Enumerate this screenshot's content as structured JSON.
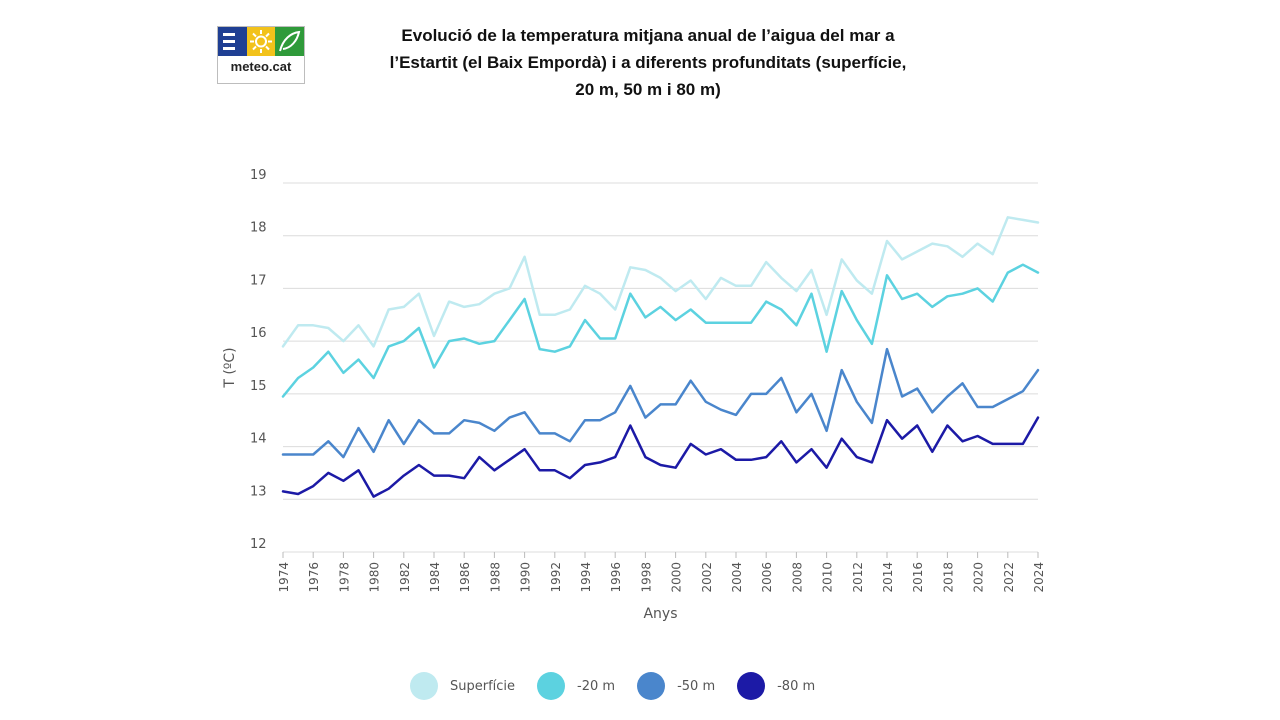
{
  "logo": {
    "text": "meteo.cat",
    "icons": [
      "menu-bars-icon",
      "sun-icon",
      "leaf-icon"
    ]
  },
  "chart_data": {
    "type": "line",
    "title": "Evolució de la temperatura mitjana anual de l’aigua del mar a l’Estartit (el Baix Empordà) i a diferents profunditats (superfície, 20 m, 50 m i 80 m)",
    "title_lines": [
      "Evolució de la temperatura mitjana anual de l’aigua del mar a",
      "l’Estartit (el Baix Empordà) i a diferents profunditats (superfície,",
      "20 m, 50 m i 80 m)"
    ],
    "xlabel": "Anys",
    "ylabel": "T (ºC)",
    "ylim": [
      12,
      19
    ],
    "yticks": [
      12,
      13,
      14,
      15,
      16,
      17,
      18,
      19
    ],
    "xlim": [
      1974,
      2024
    ],
    "xticks": [
      1974,
      1976,
      1978,
      1980,
      1982,
      1984,
      1986,
      1988,
      1990,
      1992,
      1994,
      1996,
      1998,
      2000,
      2002,
      2004,
      2006,
      2008,
      2010,
      2012,
      2014,
      2016,
      2018,
      2020,
      2022,
      2024
    ],
    "grid": true,
    "legend_position": "bottom",
    "x": [
      1974,
      1975,
      1976,
      1977,
      1978,
      1979,
      1980,
      1981,
      1982,
      1983,
      1984,
      1985,
      1986,
      1987,
      1988,
      1989,
      1990,
      1991,
      1992,
      1993,
      1994,
      1995,
      1996,
      1997,
      1998,
      1999,
      2000,
      2001,
      2002,
      2003,
      2004,
      2005,
      2006,
      2007,
      2008,
      2009,
      2010,
      2011,
      2012,
      2013,
      2014,
      2015,
      2016,
      2017,
      2018,
      2019,
      2020,
      2021,
      2022,
      2023,
      2024
    ],
    "series": [
      {
        "name": "Superfície",
        "color": "#bfeaf0",
        "values": [
          15.9,
          16.3,
          16.3,
          16.25,
          16.0,
          16.3,
          15.9,
          16.6,
          16.65,
          16.9,
          16.1,
          16.75,
          16.65,
          16.7,
          16.9,
          17.0,
          17.6,
          16.5,
          16.5,
          16.6,
          17.05,
          16.9,
          16.6,
          17.4,
          17.35,
          17.2,
          16.95,
          17.15,
          16.8,
          17.2,
          17.05,
          17.05,
          17.5,
          17.2,
          16.95,
          17.35,
          16.5,
          17.55,
          17.15,
          16.9,
          17.9,
          17.55,
          17.7,
          17.85,
          17.8,
          17.6,
          17.85,
          17.65,
          18.35,
          18.3,
          18.25
        ]
      },
      {
        "name": "-20 m",
        "color": "#5cd2e0",
        "values": [
          14.95,
          15.3,
          15.5,
          15.8,
          15.4,
          15.65,
          15.3,
          15.9,
          16.0,
          16.25,
          15.5,
          16.0,
          16.05,
          15.95,
          16.0,
          16.4,
          16.8,
          15.85,
          15.8,
          15.9,
          16.4,
          16.05,
          16.05,
          16.9,
          16.45,
          16.65,
          16.4,
          16.6,
          16.35,
          16.35,
          16.35,
          16.35,
          16.75,
          16.6,
          16.3,
          16.9,
          15.8,
          16.95,
          16.4,
          15.95,
          17.25,
          16.8,
          16.9,
          16.65,
          16.85,
          16.9,
          17.0,
          16.75,
          17.3,
          17.45,
          17.3
        ]
      },
      {
        "name": "-50 m",
        "color": "#4a86cc",
        "values": [
          13.85,
          13.85,
          13.85,
          14.1,
          13.8,
          14.35,
          13.9,
          14.5,
          14.05,
          14.5,
          14.25,
          14.25,
          14.5,
          14.45,
          14.3,
          14.55,
          14.65,
          14.25,
          14.25,
          14.1,
          14.5,
          14.5,
          14.65,
          15.15,
          14.55,
          14.8,
          14.8,
          15.25,
          14.85,
          14.7,
          14.6,
          15.0,
          15.0,
          15.3,
          14.65,
          15.0,
          14.3,
          15.45,
          14.85,
          14.45,
          15.85,
          14.95,
          15.1,
          14.65,
          14.95,
          15.2,
          14.75,
          14.75,
          14.9,
          15.05,
          15.45
        ]
      },
      {
        "name": "-80 m",
        "color": "#1c1aa6",
        "values": [
          13.15,
          13.1,
          13.25,
          13.5,
          13.35,
          13.55,
          13.05,
          13.2,
          13.45,
          13.65,
          13.45,
          13.45,
          13.4,
          13.8,
          13.55,
          13.75,
          13.95,
          13.55,
          13.55,
          13.4,
          13.65,
          13.7,
          13.8,
          14.4,
          13.8,
          13.65,
          13.6,
          14.05,
          13.85,
          13.95,
          13.75,
          13.75,
          13.8,
          14.1,
          13.7,
          13.95,
          13.6,
          14.15,
          13.8,
          13.7,
          14.5,
          14.15,
          14.4,
          13.9,
          14.4,
          14.1,
          14.2,
          14.05,
          14.05,
          14.05,
          14.55
        ]
      }
    ]
  }
}
